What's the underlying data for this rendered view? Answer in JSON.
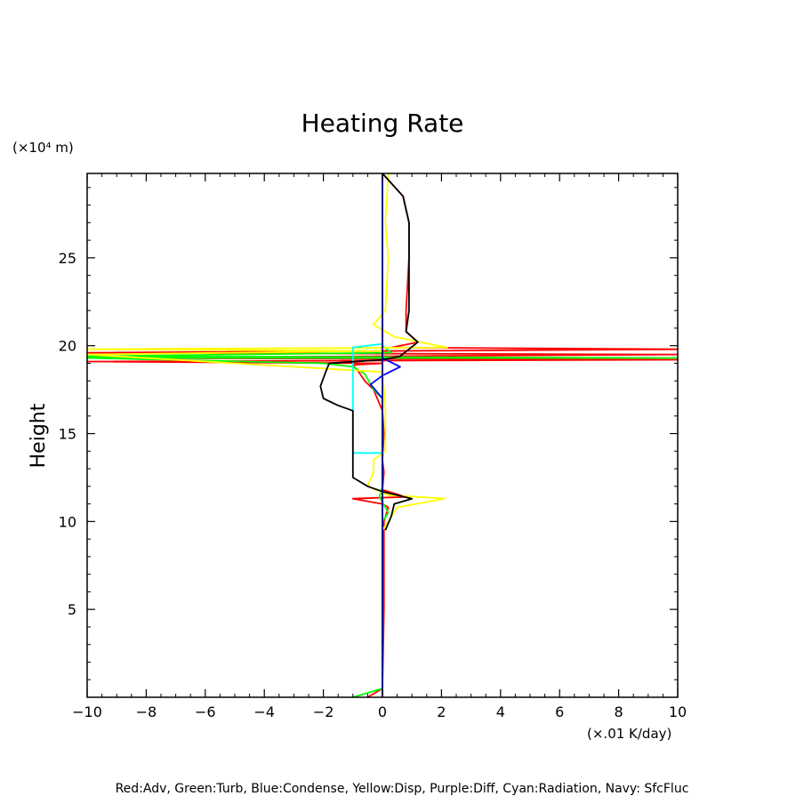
{
  "chart_data": {
    "type": "line",
    "title": "Heating Rate",
    "ylabel": "Height",
    "yunit": "(×10⁴ m)",
    "xunit": "(×.01 K/day)",
    "xlim": [
      -10,
      10
    ],
    "ylim": [
      0,
      29.8
    ],
    "xticks": [
      "−10",
      "−8",
      "−6",
      "−4",
      "−2",
      "0",
      "2",
      "4",
      "6",
      "8",
      "10"
    ],
    "xtick_values": [
      -10,
      -8,
      -6,
      -4,
      -2,
      0,
      2,
      4,
      6,
      8,
      10
    ],
    "yticks": [
      "5",
      "10",
      "15",
      "20",
      "25"
    ],
    "ytick_values": [
      5,
      10,
      15,
      20,
      25
    ],
    "legend_text": "Red:Adv, Green:Turb, Blue:Condense, Yellow:Disp, Purple:Diff, Cyan:Radiation, Navy: SfcFluc",
    "grid": false,
    "series": [
      {
        "color": "#ff0000",
        "points": [
          [
            -0.5,
            0
          ],
          [
            0,
            0.5
          ],
          [
            0.05,
            5
          ],
          [
            0.05,
            10
          ],
          [
            0.2,
            10.8
          ],
          [
            0,
            11
          ],
          [
            -1,
            11.3
          ],
          [
            0.8,
            11.4
          ],
          [
            0,
            11.8
          ],
          [
            0.05,
            12.8
          ],
          [
            0,
            13.5
          ],
          [
            0.05,
            15
          ],
          [
            0,
            16.3
          ],
          [
            -0.3,
            17.5
          ],
          [
            -0.6,
            18
          ],
          [
            -0.8,
            18.5
          ],
          [
            -1,
            18.9
          ],
          [
            0,
            19
          ],
          [
            -10,
            19.1
          ],
          [
            10,
            19.2
          ],
          [
            -10,
            19.3
          ],
          [
            10,
            19.5
          ],
          [
            -10,
            19.6
          ],
          [
            10,
            19.8
          ],
          [
            0.3,
            19.9
          ],
          [
            1.2,
            20.2
          ],
          [
            0.8,
            20.8
          ],
          [
            0.8,
            22
          ],
          [
            0.9,
            25
          ],
          [
            0.9,
            27
          ],
          [
            0.7,
            28.5
          ],
          [
            0,
            29.8
          ]
        ]
      },
      {
        "color": "#00ff00",
        "points": [
          [
            -1,
            0
          ],
          [
            0,
            0.5
          ],
          [
            0,
            10
          ],
          [
            0.2,
            10.5
          ],
          [
            -0.1,
            11.4
          ],
          [
            0,
            12
          ],
          [
            0,
            17
          ],
          [
            -0.3,
            17.5
          ],
          [
            -0.6,
            18.4
          ],
          [
            -1,
            18.8
          ],
          [
            -2,
            19
          ],
          [
            -10,
            19.3
          ],
          [
            10,
            19.3
          ],
          [
            -10,
            19.4
          ],
          [
            0.3,
            19.6
          ],
          [
            0,
            20
          ]
        ]
      },
      {
        "color": "#0000ff",
        "points": [
          [
            0,
            0
          ],
          [
            0,
            17
          ],
          [
            -0.4,
            17.8
          ],
          [
            0,
            18.3
          ],
          [
            0.6,
            18.8
          ],
          [
            0,
            19.3
          ],
          [
            0,
            29.8
          ]
        ]
      },
      {
        "color": "#ffff00",
        "points": [
          [
            0,
            9.5
          ],
          [
            0.5,
            10.8
          ],
          [
            2.1,
            11.3
          ],
          [
            0.2,
            11.5
          ],
          [
            -0.5,
            12
          ],
          [
            -0.3,
            12.8
          ],
          [
            -0.3,
            13.5
          ],
          [
            0.1,
            14
          ],
          [
            0.1,
            16.5
          ],
          [
            0,
            18.5
          ],
          [
            -10,
            19.5
          ],
          [
            0,
            19.7
          ],
          [
            -10,
            19.8
          ],
          [
            2.2,
            19.9
          ],
          [
            0.4,
            20.5
          ],
          [
            -0.3,
            21.2
          ],
          [
            0.1,
            22
          ],
          [
            0.2,
            25
          ],
          [
            0.1,
            27
          ],
          [
            0.2,
            29.8
          ]
        ]
      },
      {
        "color": "#00ffff",
        "points": [
          [
            0,
            13.9
          ],
          [
            -1,
            13.9
          ],
          [
            -1,
            19.9
          ],
          [
            0,
            20.1
          ]
        ]
      },
      {
        "color": "#000000",
        "points": [
          [
            0.1,
            9.5
          ],
          [
            0.3,
            10.3
          ],
          [
            0.4,
            11
          ],
          [
            1,
            11.3
          ],
          [
            0,
            11.7
          ],
          [
            -0.5,
            12
          ],
          [
            -1,
            12.5
          ],
          [
            -1,
            14
          ],
          [
            -1,
            16.3
          ],
          [
            -1.5,
            16.6
          ],
          [
            -2,
            17
          ],
          [
            -2.1,
            17.7
          ],
          [
            -1.9,
            18.6
          ],
          [
            -1.8,
            19
          ],
          [
            0,
            19.2
          ],
          [
            0.6,
            19.4
          ],
          [
            1.2,
            20.2
          ],
          [
            0.8,
            20.8
          ],
          [
            0.9,
            22
          ],
          [
            0.9,
            25
          ],
          [
            0.9,
            27
          ],
          [
            0.7,
            28.5
          ],
          [
            0,
            29.8
          ]
        ]
      },
      {
        "color": "#000080",
        "points": [
          [
            0,
            0
          ],
          [
            0,
            29.8
          ]
        ]
      }
    ]
  }
}
